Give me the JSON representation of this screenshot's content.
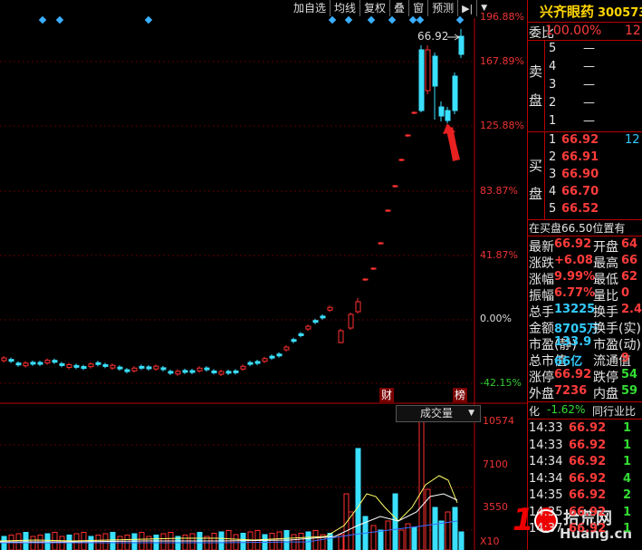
{
  "toolbar": [
    "加自选",
    "均线",
    "复权",
    "叠",
    "窗",
    "预测"
  ],
  "main_axis": [
    "196.88%",
    "167.89%",
    "125.88%",
    "83.87%",
    "41.87%",
    "0.00%",
    "-42.15%"
  ],
  "vol_axis": [
    "10574",
    "7100",
    "3550",
    "X10"
  ],
  "price_label": "66.92",
  "markers": {
    "cai": "财",
    "bang": "榜"
  },
  "volume_label": "成交量",
  "stock": {
    "name": "兴齐眼药",
    "code": "300573"
  },
  "weibi": {
    "label": "委比",
    "value": "100.00%",
    "extra": "12"
  },
  "sell": {
    "side": "卖",
    "side2": "盘",
    "rows": [
      {
        "n": "5",
        "p": "—"
      },
      {
        "n": "4",
        "p": "—"
      },
      {
        "n": "3",
        "p": "—"
      },
      {
        "n": "2",
        "p": "—"
      },
      {
        "n": "1",
        "p": "—"
      }
    ]
  },
  "buy": {
    "side": "买",
    "side2": "盘",
    "rows": [
      {
        "n": "1",
        "p": "66.92",
        "v": "12"
      },
      {
        "n": "2",
        "p": "66.91"
      },
      {
        "n": "3",
        "p": "66.90"
      },
      {
        "n": "4",
        "p": "66.70"
      },
      {
        "n": "5",
        "p": "66.52"
      }
    ]
  },
  "position_note": "在买盘66.50位置有",
  "quote": [
    {
      "l": "最新",
      "v": "66.92",
      "l2": "开盘",
      "v2": "64"
    },
    {
      "l": "涨跌",
      "v": "+6.08",
      "l2": "最高",
      "v2": "66"
    },
    {
      "l": "涨幅",
      "v": "9.99%",
      "l2": "最低",
      "v2": "62"
    },
    {
      "l": "振幅",
      "v": "6.77%",
      "l2": "量比",
      "v2": "0"
    },
    {
      "l": "总手",
      "v": "13225",
      "l2": "换手",
      "v2": "2.4"
    },
    {
      "l": "金额",
      "v": "8705万",
      "l2": "换手(实)",
      "v2": ""
    },
    {
      "l": "市盈(静)",
      "v": "133.9",
      "l2": "市盈(动)",
      "v2": ""
    },
    {
      "l": "总市值",
      "v": "66亿",
      "l2": "流通值",
      "v2": "9"
    },
    {
      "l": "涨停",
      "v": "66.92",
      "l2": "跌停",
      "v2": "54"
    },
    {
      "l": "外盘",
      "v": "7236",
      "l2": "内盘",
      "v2": "59"
    }
  ],
  "change_row": {
    "l": "化",
    "v": "-1.62%",
    "l2": "同行业比"
  },
  "ticks": [
    {
      "t": "14:33",
      "p": "66.92",
      "v": "1"
    },
    {
      "t": "14:33",
      "p": "66.92",
      "v": "1"
    },
    {
      "t": "14:34",
      "p": "66.92",
      "v": "1"
    },
    {
      "t": "14:34",
      "p": "66.92",
      "v": "4"
    },
    {
      "t": "14:35",
      "p": "66.92",
      "v": "2"
    },
    {
      "t": "14:35",
      "p": "66.92",
      "v": "1"
    },
    {
      "t": "14:37",
      "p": "66.92",
      "v": "1"
    }
  ],
  "watermark": {
    "num": "10",
    "text": "拾荒网",
    "url": "Huang.cn"
  }
}
